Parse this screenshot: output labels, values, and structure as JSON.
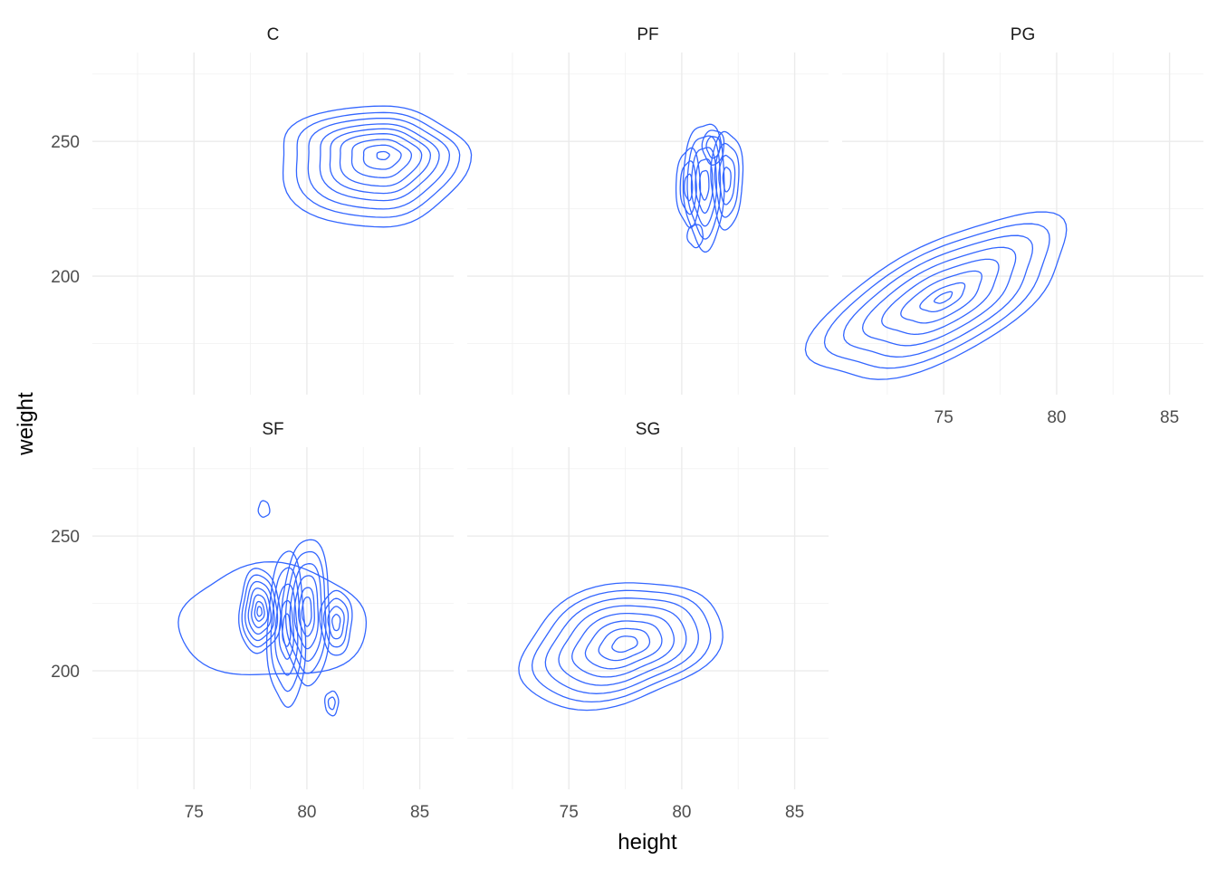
{
  "chart_data": {
    "type": "contour",
    "xlabel": "height",
    "ylabel": "weight",
    "xlim": [
      70.5,
      86.5
    ],
    "ylim": [
      156,
      283
    ],
    "x_ticks": [
      75,
      80,
      85
    ],
    "y_ticks": [
      200,
      250
    ],
    "x_minor": [
      72.5,
      77.5,
      82.5
    ],
    "y_minor": [
      175,
      225,
      275
    ],
    "grid": true,
    "line_color": "#3366FF",
    "panels": [
      {
        "name": "C",
        "blobs": [
          {
            "cx": 83.4,
            "cy": 245,
            "rx": [
              1.6,
              1.2,
              1.2,
              1.1
            ],
            "ry": [
              10,
              9,
              9,
              6
            ],
            "scales": [
              3.0,
              2.6,
              2.25,
              1.9,
              1.6,
              1.3,
              0.95,
              0.6,
              0.2
            ]
          }
        ]
      },
      {
        "name": "PF",
        "blobs": [
          {
            "cx": 81.0,
            "cy": 234,
            "rx": [
              0.35,
              0.35,
              0.35,
              0.35
            ],
            "ry": [
              9,
              9,
              9,
              9
            ],
            "scales": [
              2.6,
              2.1,
              1.6,
              1.1,
              0.6
            ]
          },
          {
            "cx": 82.0,
            "cy": 236,
            "rx": [
              0.35,
              0.35,
              0.35,
              0.35
            ],
            "ry": [
              9,
              9,
              9,
              9
            ],
            "scales": [
              2.0,
              1.5,
              1.0,
              0.5
            ]
          },
          {
            "cx": 80.3,
            "cy": 233,
            "rx": [
              0.3,
              0.3,
              0.3,
              0.3
            ],
            "ry": [
              8,
              8,
              8,
              8
            ],
            "scales": [
              1.8,
              1.2,
              0.6
            ]
          },
          {
            "cx": 81.4,
            "cy": 248,
            "rx": [
              0.3,
              0.3,
              0.3,
              0.3
            ],
            "ry": [
              4,
              4,
              4,
              4
            ],
            "scales": [
              1.6,
              1.0
            ]
          },
          {
            "cx": 80.6,
            "cy": 215,
            "rx": [
              0.25,
              0.25,
              0.25,
              0.25
            ],
            "ry": [
              3,
              3,
              3,
              3
            ],
            "scales": [
              1.4
            ]
          }
        ]
      },
      {
        "name": "PG",
        "blobs": [
          {
            "cx": 75.0,
            "cy": 192,
            "rx": [
              2.0,
              1.9,
              1.0,
              1.0
            ],
            "ry": [
              10,
              9,
              8,
              8
            ],
            "scales": [
              2.9,
              2.5,
              2.1,
              1.7,
              1.3,
              0.9,
              0.5,
              0.2
            ],
            "shear": 3.5
          }
        ]
      },
      {
        "name": "SF",
        "blobs": [
          {
            "cx": 77.9,
            "cy": 222,
            "rx": [
              0.35,
              0.35,
              0.35,
              0.35
            ],
            "ry": [
              6,
              6,
              6,
              6
            ],
            "scales": [
              2.6,
              2.2,
              1.8,
              1.4,
              1.0,
              0.6,
              0.3
            ]
          },
          {
            "cx": 79.1,
            "cy": 215,
            "rx": [
              0.35,
              0.35,
              0.35,
              0.35
            ],
            "ry": [
              12,
              12,
              12,
              12
            ],
            "scales": [
              2.4,
              1.9,
              1.4,
              0.9,
              0.5
            ]
          },
          {
            "cx": 80.0,
            "cy": 222,
            "rx": [
              0.35,
              0.35,
              0.35,
              0.35
            ],
            "ry": [
              9,
              9,
              9,
              9
            ],
            "scales": [
              3.0,
              2.5,
              2.0,
              1.5,
              1.0,
              0.6
            ]
          },
          {
            "cx": 81.3,
            "cy": 218,
            "rx": [
              0.35,
              0.35,
              0.35,
              0.35
            ],
            "ry": [
              6,
              6,
              6,
              6
            ],
            "scales": [
              2.0,
              1.5,
              1.0,
              0.5
            ]
          },
          {
            "cx": 78.5,
            "cy": 218,
            "rx": [
              2.6,
              2.6,
              2.6,
              2.6
            ],
            "ry": [
              13,
              13,
              13,
              13
            ],
            "scales": [
              1.6
            ]
          },
          {
            "cx": 78.1,
            "cy": 260,
            "rx": [
              0.25,
              0.25,
              0.25,
              0.25
            ],
            "ry": [
              3,
              3,
              3,
              3
            ],
            "scales": [
              1.0
            ]
          },
          {
            "cx": 81.1,
            "cy": 188,
            "rx": [
              0.3,
              0.3,
              0.3,
              0.3
            ],
            "ry": [
              4.5,
              4.5,
              4.5,
              4.5
            ],
            "scales": [
              1.0,
              0.5
            ]
          }
        ]
      },
      {
        "name": "SG",
        "blobs": [
          {
            "cx": 77.5,
            "cy": 210,
            "rx": [
              1.7,
              1.5,
              1.1,
              1.0
            ],
            "ry": [
              9,
              9,
              8,
              8
            ],
            "scales": [
              2.8,
              2.45,
              2.1,
              1.75,
              1.4,
              1.05,
              0.7,
              0.35
            ],
            "shear": 1.5
          }
        ]
      }
    ]
  }
}
